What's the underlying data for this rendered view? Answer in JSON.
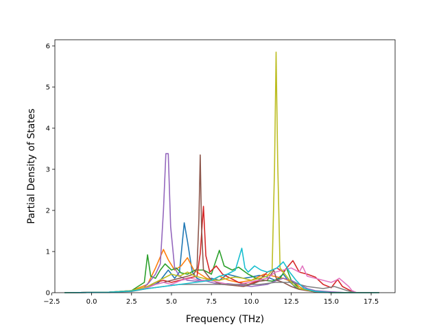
{
  "chart_data": {
    "type": "line",
    "title": "",
    "xlabel": "Frequency (THz)",
    "ylabel": "Partial Density of States",
    "xlim": [
      -2.3,
      19.0
    ],
    "ylim": [
      0,
      6.15
    ],
    "xticks": [
      -2.5,
      0.0,
      2.5,
      5.0,
      7.5,
      10.0,
      12.5,
      15.0,
      17.5
    ],
    "xtick_labels": [
      "−2.5",
      "0.0",
      "2.5",
      "5.0",
      "7.5",
      "10.0",
      "12.5",
      "15.0",
      "17.5"
    ],
    "yticks": [
      0,
      1,
      2,
      3,
      4,
      5,
      6
    ],
    "ytick_labels": [
      "0",
      "1",
      "2",
      "3",
      "4",
      "5",
      "6"
    ],
    "grid": false,
    "legend": "none",
    "series": [
      {
        "color": "#1f77b4",
        "points": [
          [
            -1.7,
            0
          ],
          [
            1,
            0.01
          ],
          [
            2.5,
            0.04
          ],
          [
            3.5,
            0.12
          ],
          [
            4.2,
            0.25
          ],
          [
            4.8,
            0.55
          ],
          [
            5.2,
            0.35
          ],
          [
            5.5,
            0.5
          ],
          [
            5.8,
            1.7
          ],
          [
            6.0,
            1.25
          ],
          [
            6.3,
            0.5
          ],
          [
            6.6,
            0.35
          ],
          [
            7.0,
            0.28
          ],
          [
            7.5,
            0.35
          ],
          [
            8.0,
            0.3
          ],
          [
            8.5,
            0.45
          ],
          [
            9.0,
            0.4
          ],
          [
            9.5,
            0.35
          ],
          [
            10.0,
            0.38
          ],
          [
            10.5,
            0.42
          ],
          [
            11.0,
            0.38
          ],
          [
            11.5,
            0.3
          ],
          [
            12.0,
            0.45
          ],
          [
            12.3,
            0.3
          ],
          [
            12.8,
            0.12
          ],
          [
            13.5,
            0.05
          ],
          [
            14.5,
            0.02
          ],
          [
            16.0,
            0
          ],
          [
            18.0,
            0
          ]
        ]
      },
      {
        "color": "#ff7f0e",
        "points": [
          [
            -1.7,
            0
          ],
          [
            1,
            0.01
          ],
          [
            2.5,
            0.05
          ],
          [
            3.5,
            0.2
          ],
          [
            4.0,
            0.6
          ],
          [
            4.5,
            1.05
          ],
          [
            4.8,
            0.8
          ],
          [
            5.2,
            0.55
          ],
          [
            5.6,
            0.65
          ],
          [
            6.0,
            0.85
          ],
          [
            6.4,
            0.55
          ],
          [
            6.8,
            0.45
          ],
          [
            7.2,
            0.35
          ],
          [
            7.6,
            0.3
          ],
          [
            8.0,
            0.4
          ],
          [
            8.6,
            0.3
          ],
          [
            9.2,
            0.25
          ],
          [
            10.0,
            0.3
          ],
          [
            10.8,
            0.45
          ],
          [
            11.4,
            0.4
          ],
          [
            12.0,
            0.35
          ],
          [
            12.6,
            0.25
          ],
          [
            13.2,
            0.1
          ],
          [
            14.0,
            0.04
          ],
          [
            15.0,
            0.01
          ],
          [
            16.0,
            0
          ],
          [
            18.0,
            0
          ]
        ]
      },
      {
        "color": "#2ca02c",
        "points": [
          [
            -1.7,
            0
          ],
          [
            1,
            0.01
          ],
          [
            2.5,
            0.05
          ],
          [
            3.3,
            0.25
          ],
          [
            3.5,
            0.92
          ],
          [
            3.7,
            0.4
          ],
          [
            4.0,
            0.35
          ],
          [
            4.3,
            0.55
          ],
          [
            4.6,
            0.7
          ],
          [
            5.0,
            0.55
          ],
          [
            5.3,
            0.6
          ],
          [
            5.6,
            0.48
          ],
          [
            6.0,
            0.45
          ],
          [
            6.5,
            0.55
          ],
          [
            7.0,
            0.55
          ],
          [
            7.5,
            0.45
          ],
          [
            8.0,
            1.03
          ],
          [
            8.3,
            0.65
          ],
          [
            8.8,
            0.55
          ],
          [
            9.2,
            0.62
          ],
          [
            9.8,
            0.45
          ],
          [
            10.3,
            0.35
          ],
          [
            10.8,
            0.3
          ],
          [
            11.3,
            0.28
          ],
          [
            11.8,
            0.35
          ],
          [
            12.2,
            0.6
          ],
          [
            12.5,
            0.3
          ],
          [
            13.0,
            0.1
          ],
          [
            13.8,
            0.03
          ],
          [
            15.0,
            0
          ],
          [
            18.0,
            0
          ]
        ]
      },
      {
        "color": "#d62728",
        "points": [
          [
            -1.7,
            0
          ],
          [
            1,
            0.01
          ],
          [
            2.5,
            0.04
          ],
          [
            3.5,
            0.15
          ],
          [
            4.0,
            0.25
          ],
          [
            4.5,
            0.3
          ],
          [
            5.0,
            0.25
          ],
          [
            5.5,
            0.3
          ],
          [
            6.0,
            0.35
          ],
          [
            6.6,
            0.4
          ],
          [
            6.8,
            0.95
          ],
          [
            7.0,
            2.1
          ],
          [
            7.15,
            0.9
          ],
          [
            7.4,
            0.5
          ],
          [
            7.8,
            0.65
          ],
          [
            8.2,
            0.45
          ],
          [
            8.7,
            0.35
          ],
          [
            9.2,
            0.25
          ],
          [
            9.8,
            0.2
          ],
          [
            10.5,
            0.3
          ],
          [
            11.0,
            0.5
          ],
          [
            11.6,
            0.6
          ],
          [
            12.0,
            0.5
          ],
          [
            12.6,
            0.78
          ],
          [
            13.0,
            0.5
          ],
          [
            13.5,
            0.45
          ],
          [
            14.0,
            0.38
          ],
          [
            14.5,
            0.2
          ],
          [
            15.0,
            0.12
          ],
          [
            15.4,
            0.32
          ],
          [
            15.7,
            0.15
          ],
          [
            16.2,
            0.05
          ],
          [
            16.5,
            0
          ],
          [
            18.0,
            0
          ]
        ]
      },
      {
        "color": "#9467bd",
        "points": [
          [
            -1.7,
            0
          ],
          [
            1,
            0.01
          ],
          [
            2.5,
            0.05
          ],
          [
            3.2,
            0.1
          ],
          [
            3.6,
            0.25
          ],
          [
            4.0,
            0.45
          ],
          [
            4.3,
            0.7
          ],
          [
            4.5,
            2.0
          ],
          [
            4.65,
            3.38
          ],
          [
            4.8,
            3.38
          ],
          [
            4.95,
            1.6
          ],
          [
            5.2,
            0.6
          ],
          [
            5.5,
            0.4
          ],
          [
            6.0,
            0.3
          ],
          [
            6.5,
            0.28
          ],
          [
            7.0,
            0.3
          ],
          [
            7.5,
            0.25
          ],
          [
            8.0,
            0.2
          ],
          [
            8.5,
            0.22
          ],
          [
            9.0,
            0.2
          ],
          [
            10.0,
            0.15
          ],
          [
            11.0,
            0.2
          ],
          [
            11.6,
            0.3
          ],
          [
            12.0,
            0.35
          ],
          [
            12.5,
            0.3
          ],
          [
            13.0,
            0.2
          ],
          [
            13.5,
            0.1
          ],
          [
            14.0,
            0.05
          ],
          [
            15.0,
            0.02
          ],
          [
            16.0,
            0
          ],
          [
            18.0,
            0
          ]
        ]
      },
      {
        "color": "#8c564b",
        "points": [
          [
            -1.7,
            0
          ],
          [
            1,
            0.01
          ],
          [
            2.5,
            0.04
          ],
          [
            3.5,
            0.15
          ],
          [
            4.0,
            0.2
          ],
          [
            4.5,
            0.25
          ],
          [
            5.0,
            0.3
          ],
          [
            5.5,
            0.35
          ],
          [
            6.0,
            0.4
          ],
          [
            6.4,
            0.45
          ],
          [
            6.6,
            0.6
          ],
          [
            6.72,
            1.8
          ],
          [
            6.8,
            3.35
          ],
          [
            6.88,
            1.6
          ],
          [
            7.0,
            0.55
          ],
          [
            7.4,
            0.35
          ],
          [
            7.8,
            0.25
          ],
          [
            8.2,
            0.2
          ],
          [
            8.8,
            0.18
          ],
          [
            9.5,
            0.15
          ],
          [
            10.0,
            0.2
          ],
          [
            10.5,
            0.28
          ],
          [
            11.0,
            0.3
          ],
          [
            11.4,
            0.55
          ],
          [
            11.6,
            0.3
          ],
          [
            12.0,
            0.25
          ],
          [
            12.5,
            0.15
          ],
          [
            13.0,
            0.08
          ],
          [
            14.0,
            0.02
          ],
          [
            15.0,
            0
          ],
          [
            18.0,
            0
          ]
        ]
      },
      {
        "color": "#e377c2",
        "points": [
          [
            -1.7,
            0
          ],
          [
            1,
            0.01
          ],
          [
            2.5,
            0.04
          ],
          [
            3.5,
            0.12
          ],
          [
            4.0,
            0.2
          ],
          [
            4.5,
            0.25
          ],
          [
            5.0,
            0.2
          ],
          [
            5.6,
            0.3
          ],
          [
            6.2,
            0.35
          ],
          [
            6.8,
            0.3
          ],
          [
            7.4,
            0.3
          ],
          [
            8.0,
            0.25
          ],
          [
            8.6,
            0.2
          ],
          [
            9.2,
            0.2
          ],
          [
            9.8,
            0.25
          ],
          [
            10.4,
            0.3
          ],
          [
            11.0,
            0.35
          ],
          [
            11.5,
            0.5
          ],
          [
            12.0,
            0.55
          ],
          [
            12.5,
            0.6
          ],
          [
            13.0,
            0.5
          ],
          [
            13.2,
            0.65
          ],
          [
            13.5,
            0.4
          ],
          [
            14.0,
            0.35
          ],
          [
            14.5,
            0.3
          ],
          [
            15.0,
            0.25
          ],
          [
            15.3,
            0.3
          ],
          [
            15.5,
            0.35
          ],
          [
            15.8,
            0.25
          ],
          [
            16.1,
            0.15
          ],
          [
            16.3,
            0.05
          ],
          [
            16.6,
            0
          ],
          [
            18.0,
            0
          ]
        ]
      },
      {
        "color": "#7f7f7f",
        "points": [
          [
            -1.7,
            0
          ],
          [
            1,
            0.01
          ],
          [
            2.5,
            0.03
          ],
          [
            3.5,
            0.1
          ],
          [
            4.5,
            0.15
          ],
          [
            5.5,
            0.2
          ],
          [
            6.5,
            0.2
          ],
          [
            7.5,
            0.2
          ],
          [
            8.5,
            0.2
          ],
          [
            9.5,
            0.2
          ],
          [
            10.5,
            0.2
          ],
          [
            11.5,
            0.25
          ],
          [
            12.5,
            0.25
          ],
          [
            13.5,
            0.15
          ],
          [
            14.5,
            0.1
          ],
          [
            15.2,
            0.15
          ],
          [
            15.6,
            0.1
          ],
          [
            16.0,
            0.05
          ],
          [
            16.5,
            0
          ],
          [
            18.0,
            0
          ]
        ]
      },
      {
        "color": "#bcbd22",
        "points": [
          [
            -1.7,
            0
          ],
          [
            1,
            0.01
          ],
          [
            2.5,
            0.05
          ],
          [
            3.5,
            0.15
          ],
          [
            4.0,
            0.25
          ],
          [
            4.5,
            0.35
          ],
          [
            5.0,
            0.45
          ],
          [
            5.5,
            0.4
          ],
          [
            6.0,
            0.5
          ],
          [
            6.5,
            0.4
          ],
          [
            7.0,
            0.35
          ],
          [
            7.5,
            0.3
          ],
          [
            8.0,
            0.3
          ],
          [
            8.5,
            0.35
          ],
          [
            9.0,
            0.38
          ],
          [
            9.5,
            0.35
          ],
          [
            10.0,
            0.3
          ],
          [
            10.5,
            0.35
          ],
          [
            11.0,
            0.4
          ],
          [
            11.3,
            0.55
          ],
          [
            11.45,
            3.0
          ],
          [
            11.55,
            5.85
          ],
          [
            11.65,
            3.2
          ],
          [
            11.8,
            0.6
          ],
          [
            12.2,
            0.4
          ],
          [
            12.6,
            0.2
          ],
          [
            13.0,
            0.1
          ],
          [
            14.0,
            0.03
          ],
          [
            15.0,
            0
          ],
          [
            18.0,
            0
          ]
        ]
      },
      {
        "color": "#17becf",
        "points": [
          [
            -1.7,
            0
          ],
          [
            1,
            0.01
          ],
          [
            2.5,
            0.04
          ],
          [
            3.5,
            0.1
          ],
          [
            4.5,
            0.15
          ],
          [
            5.5,
            0.2
          ],
          [
            6.5,
            0.25
          ],
          [
            7.5,
            0.3
          ],
          [
            8.0,
            0.4
          ],
          [
            8.5,
            0.45
          ],
          [
            9.0,
            0.55
          ],
          [
            9.4,
            1.08
          ],
          [
            9.6,
            0.6
          ],
          [
            9.8,
            0.5
          ],
          [
            10.2,
            0.65
          ],
          [
            10.6,
            0.55
          ],
          [
            11.0,
            0.5
          ],
          [
            11.6,
            0.6
          ],
          [
            12.0,
            0.75
          ],
          [
            12.4,
            0.5
          ],
          [
            12.8,
            0.3
          ],
          [
            13.3,
            0.1
          ],
          [
            14.0,
            0.03
          ],
          [
            15.0,
            0
          ],
          [
            18.0,
            0
          ]
        ]
      }
    ]
  }
}
